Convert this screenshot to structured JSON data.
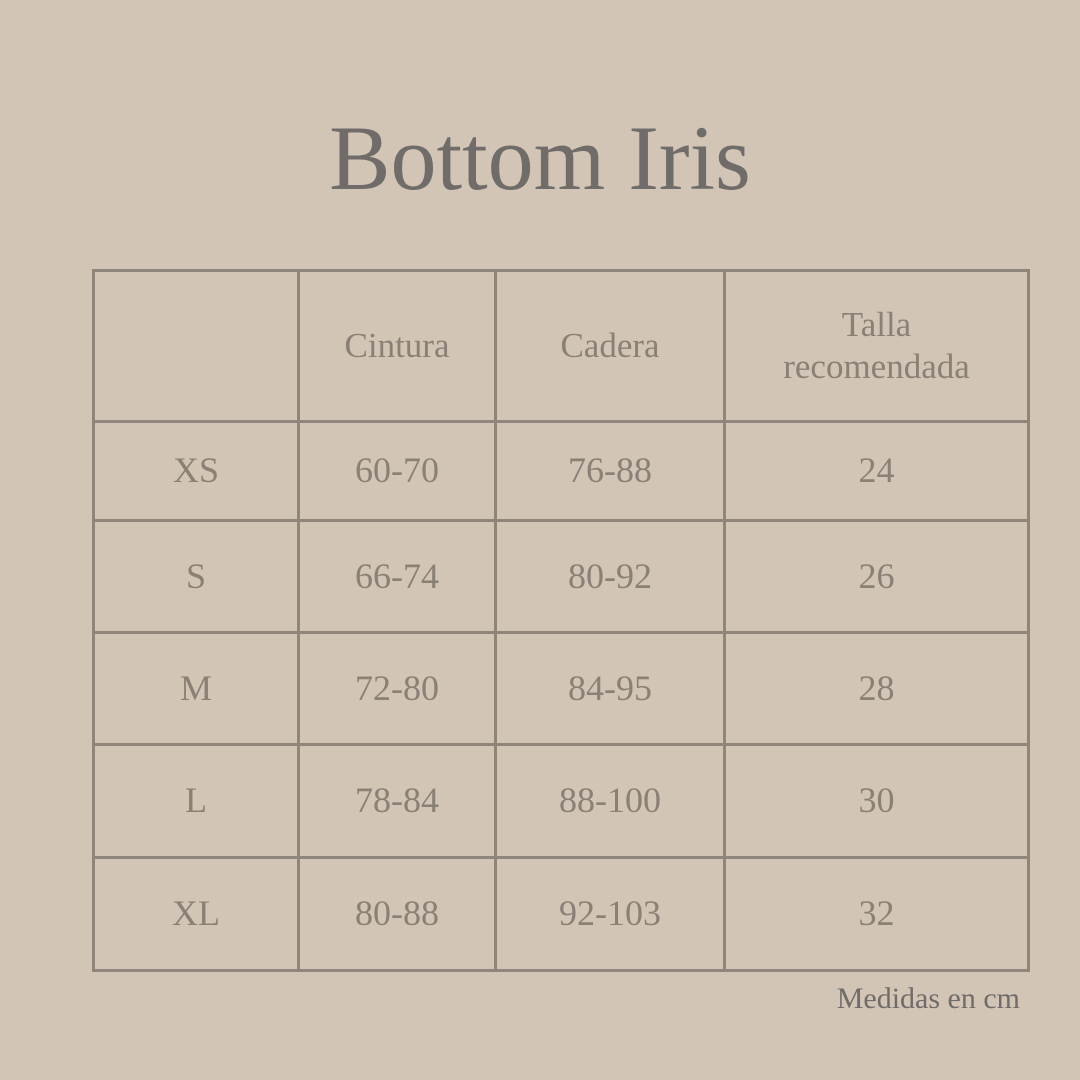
{
  "title": "Bottom Iris",
  "table": {
    "headers": [
      "",
      "Cintura",
      "Cadera",
      "Talla recomendada"
    ],
    "rows": [
      [
        "XS",
        "60-70",
        "76-88",
        "24"
      ],
      [
        "S",
        "66-74",
        "80-92",
        "26"
      ],
      [
        "M",
        "72-80",
        "84-95",
        "28"
      ],
      [
        "L",
        "78-84",
        "88-100",
        "30"
      ],
      [
        "XL",
        "80-88",
        "92-103",
        "32"
      ]
    ]
  },
  "note": "Medidas en cm",
  "colors": {
    "background": "#d3c5b6",
    "lines": "#8f857a",
    "text": "#8a8076",
    "title": "#6f6c69"
  }
}
